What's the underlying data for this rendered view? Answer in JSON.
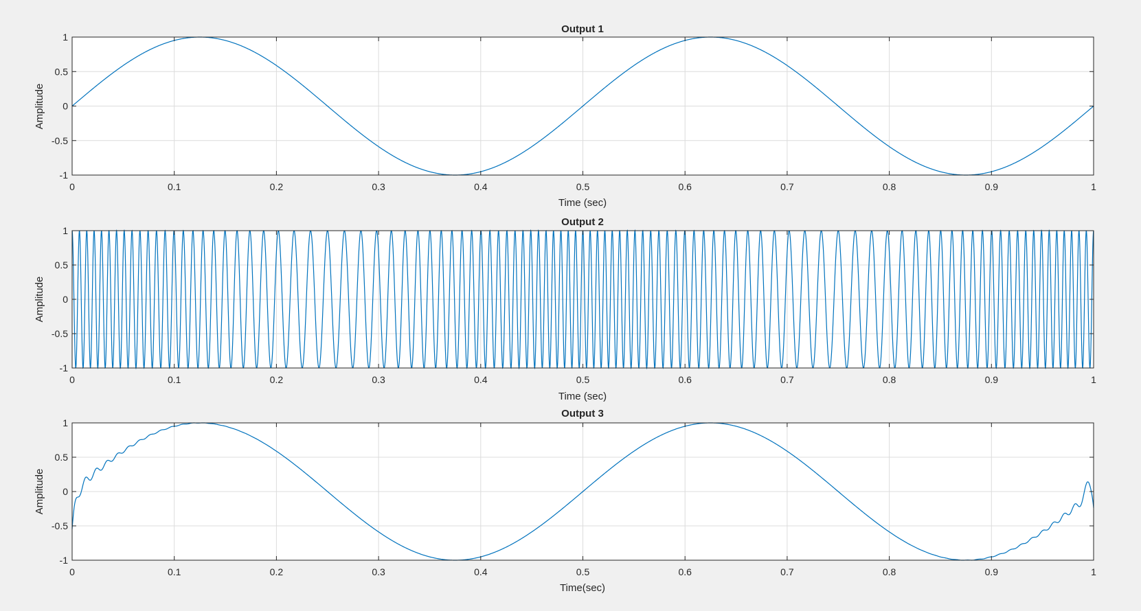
{
  "figure": {
    "background": "#f0f0f0",
    "axes_background": "#ffffff",
    "line_color": "#0072bd",
    "grid_color": "#dcdcdc"
  },
  "chart_data": [
    {
      "type": "line",
      "title": "Output 1",
      "xlabel": "Time (sec)",
      "ylabel": "Amplitude",
      "xlim": [
        0,
        1
      ],
      "ylim": [
        -1,
        1
      ],
      "xticks": [
        0,
        0.1,
        0.2,
        0.3,
        0.4,
        0.5,
        0.6,
        0.7,
        0.8,
        0.9,
        1
      ],
      "xtick_labels": [
        "0",
        "0.1",
        "0.2",
        "0.3",
        "0.4",
        "0.5",
        "0.6",
        "0.7",
        "0.8",
        "0.9",
        "1"
      ],
      "yticks": [
        -1,
        -0.5,
        0,
        0.5,
        1
      ],
      "ytick_labels": [
        "-1",
        "-0.5",
        "0",
        "0.5",
        "1"
      ],
      "grid": true,
      "series": [
        {
          "signal": "sin(2*pi*2*t)",
          "frequency_hz": 2
        }
      ]
    },
    {
      "type": "line",
      "title": "Output 2",
      "xlabel": "Time (sec)",
      "ylabel": "Amplitude",
      "xlim": [
        0,
        1
      ],
      "ylim": [
        -1,
        1
      ],
      "xticks": [
        0,
        0.1,
        0.2,
        0.3,
        0.4,
        0.5,
        0.6,
        0.7,
        0.8,
        0.9,
        1
      ],
      "xtick_labels": [
        "0",
        "0.1",
        "0.2",
        "0.3",
        "0.4",
        "0.5",
        "0.6",
        "0.7",
        "0.8",
        "0.9",
        "1"
      ],
      "yticks": [
        -1,
        -0.5,
        0,
        0.5,
        1
      ],
      "ytick_labels": [
        "-1",
        "-0.5",
        "0",
        "0.5",
        "1"
      ],
      "grid": true,
      "series": [
        {
          "signal": "frequency-modulated carrier",
          "carrier_hz": 100,
          "modulation_hz": 2,
          "peak_deviation_hz": 40
        }
      ]
    },
    {
      "type": "line",
      "title": "Output 3",
      "xlabel": "Time(sec)",
      "ylabel": "Amplitude",
      "xlim": [
        0,
        1
      ],
      "ylim": [
        -1,
        1
      ],
      "xticks": [
        0,
        0.1,
        0.2,
        0.3,
        0.4,
        0.5,
        0.6,
        0.7,
        0.8,
        0.9,
        1
      ],
      "xtick_labels": [
        "0",
        "0.1",
        "0.2",
        "0.3",
        "0.4",
        "0.5",
        "0.6",
        "0.7",
        "0.8",
        "0.9",
        "1"
      ],
      "yticks": [
        -1,
        -0.5,
        0,
        0.5,
        1
      ],
      "ytick_labels": [
        "-1",
        "-0.5",
        "0",
        "0.5",
        "1"
      ],
      "grid": true,
      "series": [
        {
          "signal": "demodulated sin(2*pi*2*t) with edge ripple",
          "frequency_hz": 2
        }
      ]
    }
  ]
}
